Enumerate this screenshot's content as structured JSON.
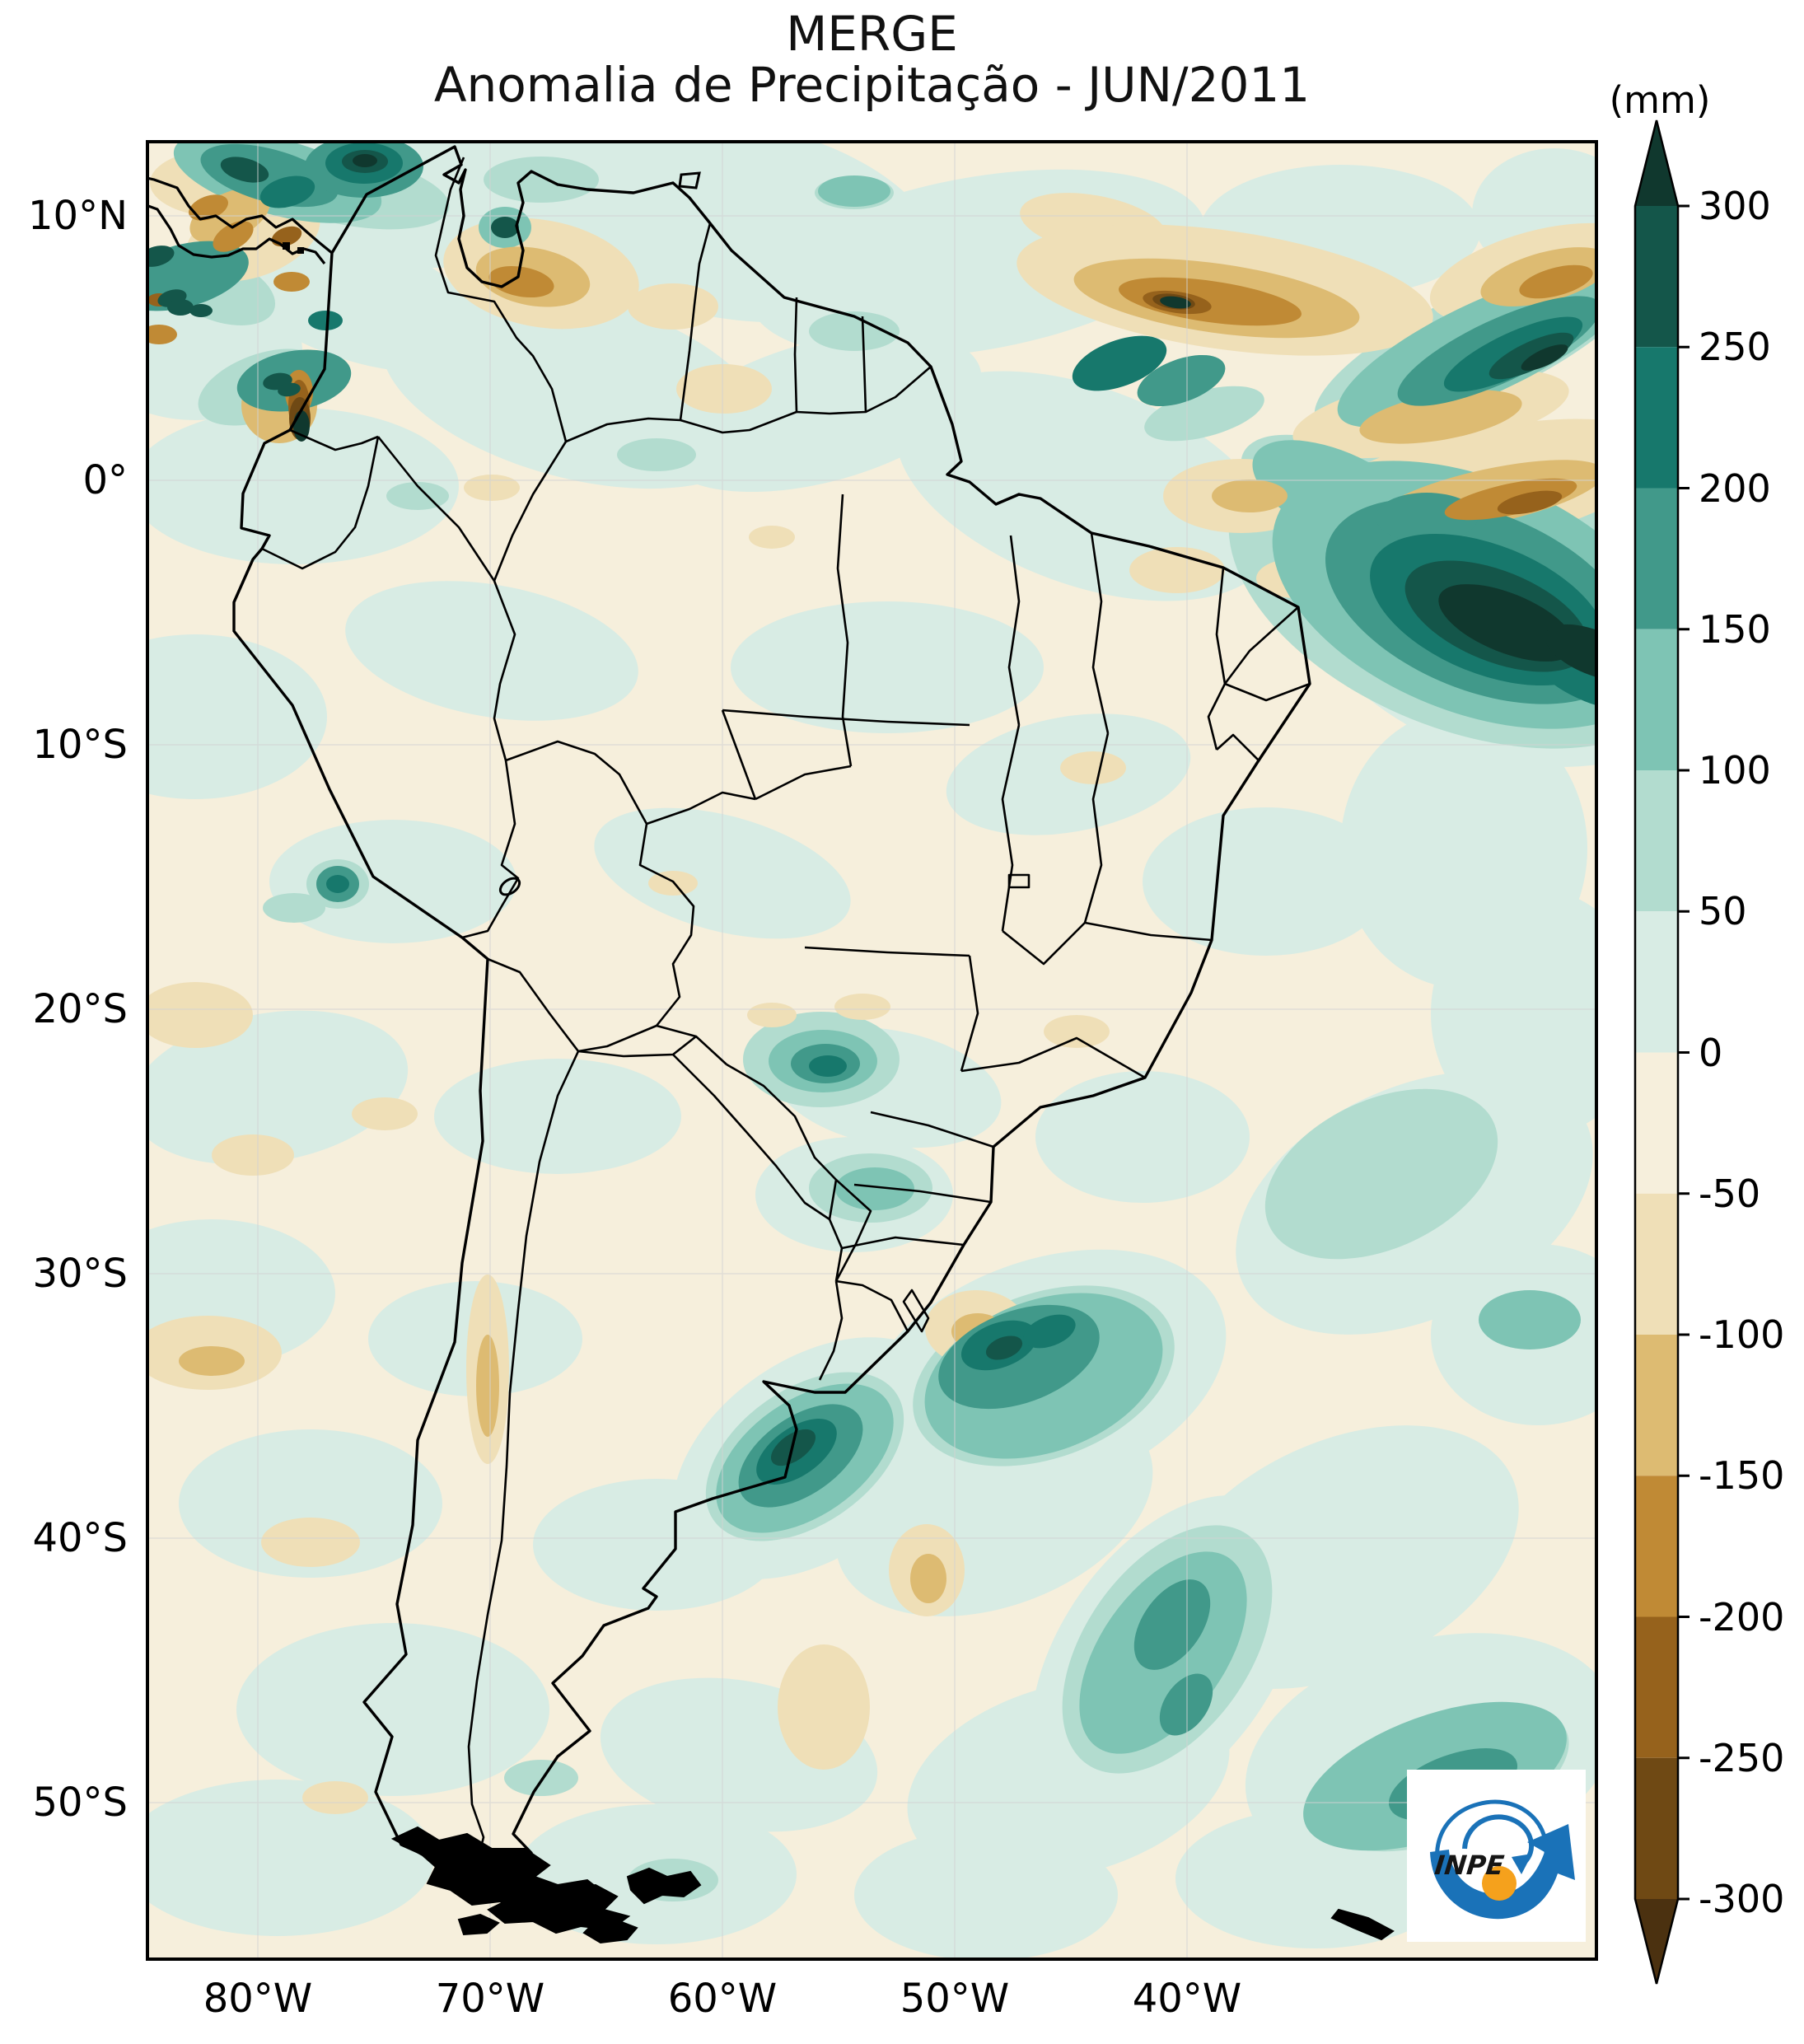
{
  "title": {
    "line1": "MERGE",
    "line2": "Anomalia de Precipitação - JUN/2011"
  },
  "colorbar": {
    "unit_label": "(mm)",
    "orientation": "vertical",
    "tick_labels": [
      "300",
      "250",
      "200",
      "150",
      "100",
      "50",
      "0",
      "-50",
      "-100",
      "-150",
      "-200",
      "-250",
      "-300"
    ],
    "segment_colors_top_to_bottom": [
      "#14564a",
      "#17786c",
      "#41998a",
      "#7ec4b4",
      "#b2dccf",
      "#d8ece4",
      "#f6efdc",
      "#efdfb7",
      "#ddbb72",
      "#c08a35",
      "#96621c",
      "#6f4914"
    ],
    "extend_above_color": "#10382e",
    "extend_below_color": "#4b3110"
  },
  "axes": {
    "y_labels": [
      "10°N",
      "0°",
      "10°S",
      "20°S",
      "30°S",
      "40°S",
      "50°S"
    ],
    "x_labels": [
      "80°W",
      "70°W",
      "60°W",
      "50°W",
      "40°W"
    ]
  },
  "logo": {
    "text": "INPE",
    "arrow_color": "#1a72b8",
    "dot_color": "#f5a11c"
  }
}
